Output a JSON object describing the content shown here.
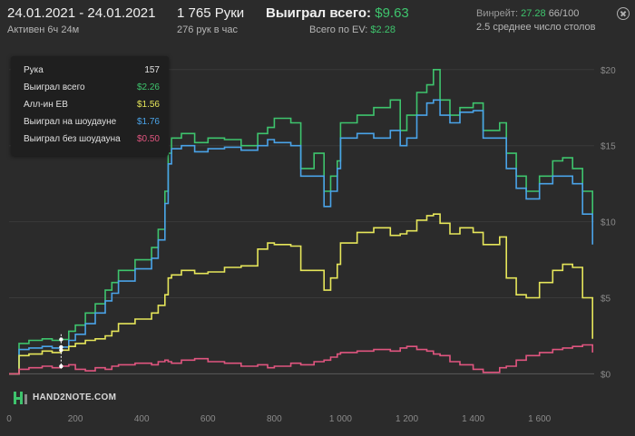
{
  "header": {
    "date_range": "24.01.2021 - 24.01.2021",
    "active": "Активен 6ч 24м",
    "hands": "1 765 Руки",
    "hands_per_hour": "276 рук в час",
    "won_label": "Выиграл всего:",
    "won_value": "$9.63",
    "ev_label": "Всего по EV:",
    "ev_value": "$2.28",
    "winrate_label": "Винрейт:",
    "winrate_value": "27.28",
    "winrate_of": "66/100",
    "avg_tables": "2.5 среднее число столов"
  },
  "legend": {
    "rows": [
      {
        "label": "Рука",
        "value": "157",
        "color": "#e0e0e0"
      },
      {
        "label": "Выиграл всего",
        "value": "$2.26",
        "color": "#3ec46d"
      },
      {
        "label": "Алл-ин EB",
        "value": "$1.56",
        "color": "#e6e65a"
      },
      {
        "label": "Выиграл на шоудауне",
        "value": "$1.76",
        "color": "#4aa3e8"
      },
      {
        "label": "Выиграл без шоудауна",
        "value": "$0.50",
        "color": "#e0557f"
      }
    ]
  },
  "logo": {
    "text": "HAND2NOTE.COM"
  },
  "chart_data": {
    "type": "line",
    "xlim": [
      0,
      1765
    ],
    "ylim": [
      -2,
      21
    ],
    "x_ticks": [
      {
        "v": 0,
        "label": "0"
      },
      {
        "v": 200,
        "label": "200"
      },
      {
        "v": 400,
        "label": "400"
      },
      {
        "v": 600,
        "label": "600"
      },
      {
        "v": 800,
        "label": "800"
      },
      {
        "v": 1000,
        "label": "1 000"
      },
      {
        "v": 1200,
        "label": "1 200"
      },
      {
        "v": 1400,
        "label": "1 400"
      },
      {
        "v": 1600,
        "label": "1 600"
      }
    ],
    "y_ticks": [
      {
        "v": 0,
        "label": "$0"
      },
      {
        "v": 5,
        "label": "$5"
      },
      {
        "v": 10,
        "label": "$10"
      },
      {
        "v": 15,
        "label": "$15"
      },
      {
        "v": 20,
        "label": "$20"
      }
    ],
    "hover_x": 157,
    "series": [
      {
        "color": "#3ec46d",
        "x": [
          0,
          30,
          60,
          100,
          130,
          157,
          180,
          200,
          230,
          260,
          290,
          310,
          330,
          380,
          430,
          450,
          470,
          480,
          490,
          520,
          560,
          600,
          650,
          700,
          750,
          780,
          800,
          850,
          880,
          920,
          950,
          970,
          990,
          1000,
          1050,
          1100,
          1150,
          1180,
          1200,
          1230,
          1260,
          1280,
          1300,
          1330,
          1360,
          1400,
          1430,
          1480,
          1500,
          1530,
          1560,
          1600,
          1640,
          1670,
          1700,
          1730,
          1760
        ],
        "y": [
          0,
          2,
          2.2,
          2.3,
          2.2,
          2.26,
          2.8,
          3.2,
          4.0,
          4.6,
          5.5,
          6.0,
          6.8,
          7.5,
          8.3,
          9.5,
          12.0,
          14.5,
          15.5,
          15.8,
          15.2,
          15.5,
          15.4,
          15.0,
          15.8,
          16.2,
          16.8,
          16.5,
          13.5,
          14.5,
          12.0,
          13.0,
          14.0,
          16.5,
          17.0,
          17.5,
          18.0,
          16.0,
          17.0,
          18.5,
          19.0,
          20.0,
          18.0,
          17.0,
          17.5,
          17.8,
          16.0,
          16.5,
          14.5,
          13.0,
          12.0,
          13.0,
          14.0,
          14.2,
          13.5,
          12.0,
          10.0
        ]
      },
      {
        "color": "#4aa3e8",
        "x": [
          0,
          30,
          60,
          100,
          130,
          157,
          180,
          200,
          230,
          260,
          290,
          310,
          330,
          380,
          430,
          450,
          470,
          480,
          490,
          520,
          560,
          600,
          650,
          700,
          750,
          780,
          800,
          850,
          880,
          920,
          950,
          970,
          990,
          1000,
          1050,
          1100,
          1150,
          1180,
          1200,
          1230,
          1260,
          1280,
          1300,
          1330,
          1360,
          1400,
          1430,
          1480,
          1500,
          1530,
          1560,
          1600,
          1640,
          1670,
          1700,
          1730,
          1760
        ],
        "y": [
          0,
          1.6,
          1.7,
          1.8,
          1.7,
          1.76,
          2.2,
          2.6,
          3.3,
          4.0,
          4.8,
          5.3,
          6.1,
          6.9,
          7.6,
          8.8,
          11.2,
          13.8,
          14.8,
          15.0,
          14.6,
          14.8,
          14.9,
          14.7,
          15.0,
          15.4,
          15.2,
          15.0,
          13.0,
          13.0,
          11.0,
          12.0,
          13.5,
          15.5,
          15.8,
          15.5,
          16.0,
          15.0,
          15.5,
          17.0,
          17.8,
          18.0,
          17.0,
          16.5,
          17.2,
          17.3,
          15.5,
          15.5,
          13.5,
          12.2,
          11.5,
          12.5,
          13.0,
          13.0,
          12.5,
          10.5,
          8.5
        ]
      },
      {
        "color": "#e6e65a",
        "x": [
          0,
          30,
          60,
          100,
          130,
          157,
          180,
          200,
          230,
          260,
          290,
          310,
          330,
          380,
          430,
          450,
          470,
          480,
          490,
          520,
          560,
          600,
          650,
          700,
          750,
          780,
          800,
          850,
          880,
          920,
          950,
          970,
          990,
          1000,
          1050,
          1100,
          1150,
          1180,
          1200,
          1230,
          1260,
          1280,
          1300,
          1330,
          1360,
          1400,
          1430,
          1480,
          1500,
          1530,
          1560,
          1600,
          1640,
          1670,
          1700,
          1730,
          1760
        ],
        "y": [
          0,
          1.2,
          1.3,
          1.5,
          1.4,
          1.56,
          1.8,
          2.0,
          2.2,
          2.3,
          2.5,
          2.8,
          3.3,
          3.6,
          4.0,
          4.5,
          5.2,
          6.3,
          6.5,
          6.8,
          6.6,
          6.7,
          7.0,
          7.1,
          8.2,
          8.6,
          8.5,
          8.4,
          6.8,
          6.8,
          5.5,
          6.3,
          7.2,
          8.6,
          9.3,
          9.6,
          9.1,
          9.2,
          9.4,
          10.1,
          10.4,
          10.5,
          9.9,
          9.2,
          9.6,
          9.3,
          8.5,
          9.0,
          6.3,
          5.2,
          5.0,
          6.0,
          6.8,
          7.2,
          7.0,
          5.0,
          2.3
        ]
      },
      {
        "color": "#e0557f",
        "x": [
          0,
          30,
          60,
          100,
          130,
          157,
          180,
          200,
          230,
          260,
          290,
          310,
          330,
          380,
          430,
          450,
          470,
          480,
          490,
          520,
          560,
          600,
          650,
          700,
          750,
          780,
          800,
          850,
          880,
          920,
          950,
          970,
          990,
          1000,
          1050,
          1100,
          1150,
          1180,
          1200,
          1230,
          1260,
          1280,
          1300,
          1330,
          1360,
          1400,
          1430,
          1480,
          1500,
          1530,
          1560,
          1600,
          1640,
          1670,
          1700,
          1730,
          1760
        ],
        "y": [
          0,
          0.3,
          0.4,
          0.5,
          0.4,
          0.5,
          0.6,
          0.3,
          0.2,
          0.4,
          0.3,
          0.5,
          0.6,
          0.7,
          0.6,
          0.8,
          0.9,
          0.8,
          0.7,
          0.9,
          1.0,
          0.8,
          0.7,
          0.5,
          0.6,
          0.4,
          0.5,
          0.7,
          0.6,
          0.8,
          0.9,
          1.1,
          1.3,
          1.4,
          1.5,
          1.6,
          1.5,
          1.7,
          1.8,
          1.6,
          1.5,
          1.3,
          1.2,
          0.8,
          0.6,
          0.3,
          0.1,
          0.4,
          0.5,
          0.9,
          1.2,
          1.4,
          1.6,
          1.7,
          1.8,
          1.9,
          1.4
        ]
      }
    ]
  }
}
